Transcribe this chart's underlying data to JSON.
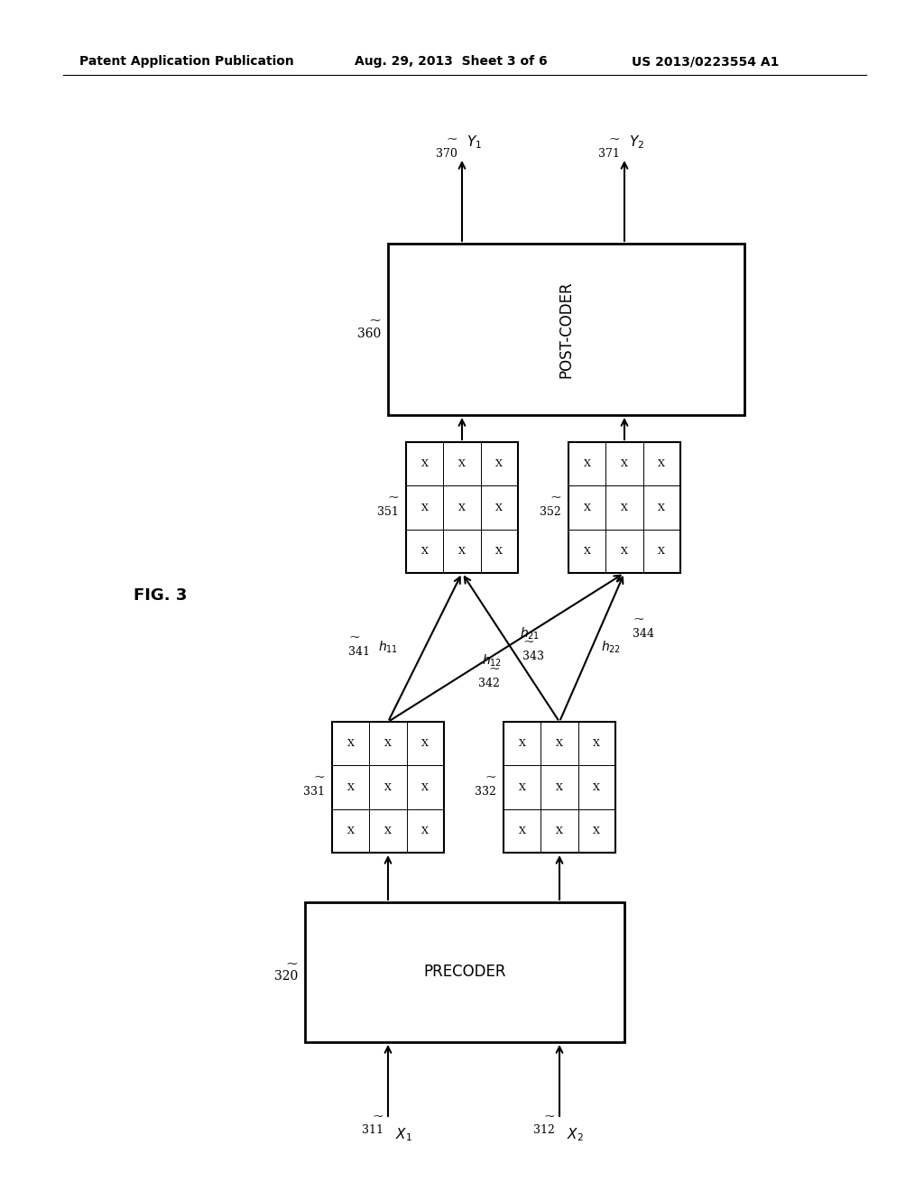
{
  "bg_color": "#ffffff",
  "header_left": "Patent Application Publication",
  "header_center": "Aug. 29, 2013  Sheet 3 of 6",
  "header_right": "US 2013/0223554 A1",
  "fig_label": "FIG. 3",
  "precoder_label": "PRECODER",
  "precoder_ref": "320",
  "postcoder_label": "POST-CODER",
  "postcoder_ref": "360",
  "input_refs": [
    "311",
    "312"
  ],
  "output_refs": [
    "370",
    "371"
  ],
  "matrix_refs_left": [
    "331",
    "332"
  ],
  "matrix_refs_right": [
    "351",
    "352"
  ],
  "channel_refs": [
    "341",
    "342",
    "343",
    "344"
  ],
  "channel_h_labels": [
    "h_{11}",
    "h_{12}",
    "h_{21}",
    "h_{22}"
  ]
}
